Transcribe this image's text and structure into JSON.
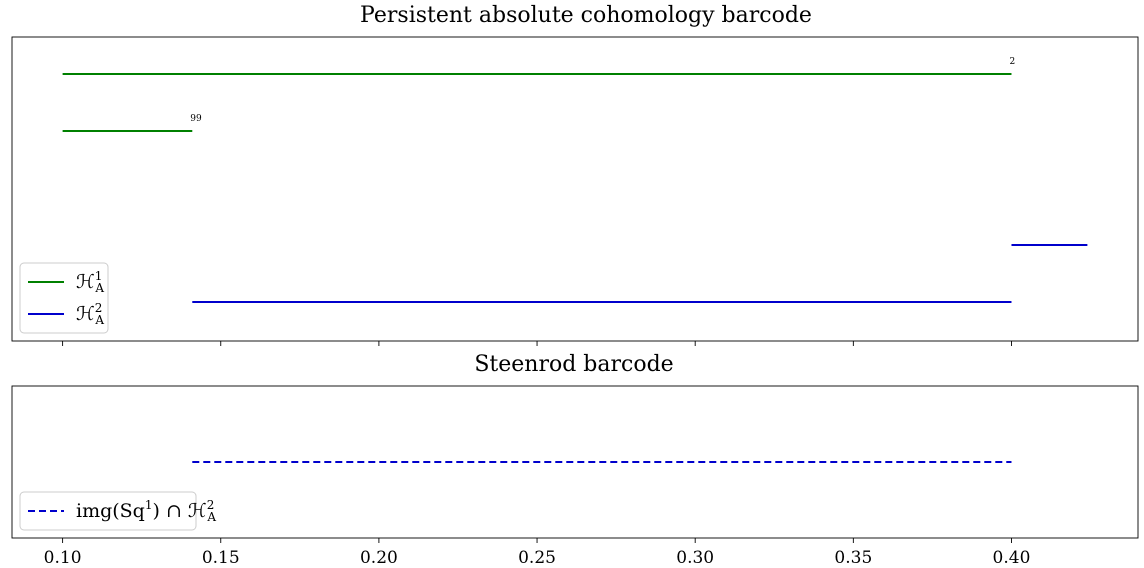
{
  "chart_data": [
    {
      "type": "barcode",
      "title": "Persistent absolute cohomology barcode",
      "xlim": [
        0.084,
        0.44
      ],
      "x_ticks": [
        0.1,
        0.15,
        0.2,
        0.25,
        0.3,
        0.35,
        0.4
      ],
      "x_tick_labels_visible": false,
      "series": [
        {
          "name": "H^1_A",
          "legend_main": "ℋ",
          "legend_sup": "1",
          "legend_sub": "A",
          "color": "#008000",
          "style": "solid",
          "bars": [
            {
              "start": 0.1,
              "end": 0.4,
              "label": "2"
            },
            {
              "start": 0.1,
              "end": 0.141,
              "label": "99"
            }
          ]
        },
        {
          "name": "H^2_A",
          "legend_main": "ℋ",
          "legend_sup": "2",
          "legend_sub": "A",
          "color": "#0000cc",
          "style": "solid",
          "bars": [
            {
              "start": 0.4,
              "end": 0.424,
              "label": ""
            },
            {
              "start": 0.141,
              "end": 0.4,
              "label": ""
            }
          ]
        }
      ],
      "legend": "lower-left"
    },
    {
      "type": "barcode",
      "title": "Steenrod barcode",
      "xlim": [
        0.084,
        0.44
      ],
      "x_ticks": [
        0.1,
        0.15,
        0.2,
        0.25,
        0.3,
        0.35,
        0.4
      ],
      "x_tick_labels": [
        "0.10",
        "0.15",
        "0.20",
        "0.25",
        "0.30",
        "0.35",
        "0.40"
      ],
      "series": [
        {
          "name": "img(Sq^1) ∩ H^2_A",
          "legend_main": "img(Sq",
          "legend_sup": "1",
          "legend_mid": ") ∩ ℋ",
          "legend_sup2": "2",
          "legend_sub": "A",
          "color": "#0000cc",
          "style": "dashed",
          "bars": [
            {
              "start": 0.141,
              "end": 0.4,
              "label": ""
            }
          ]
        }
      ],
      "legend": "lower-left"
    }
  ]
}
